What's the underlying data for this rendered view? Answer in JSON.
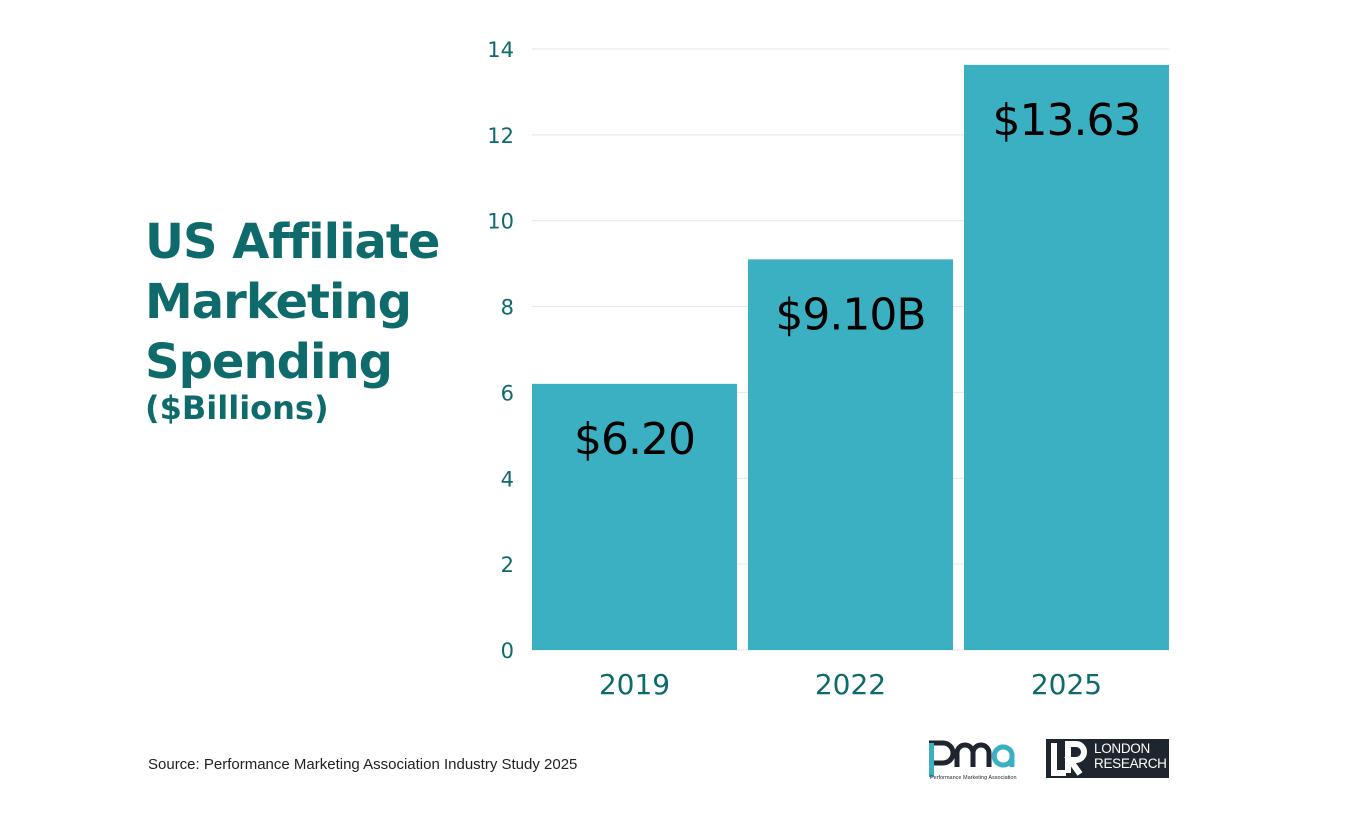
{
  "title": {
    "lines": [
      "US Affiliate",
      "Marketing",
      "Spending"
    ],
    "subtitle": "($Billions)"
  },
  "colors": {
    "title": "#0e6a6b",
    "bar": "#3cb0c3",
    "axis_text": "#0e6a6b",
    "gridline": "#dde9ea",
    "label": "#000000",
    "logo_dark": "#1f252e"
  },
  "chart_data": {
    "type": "bar",
    "categories": [
      "2019",
      "2022",
      "2025"
    ],
    "values": [
      6.2,
      9.1,
      13.63
    ],
    "data_labels": [
      "$6.20",
      "$9.10B",
      "$13.63"
    ],
    "title": "US Affiliate Marketing Spending",
    "subtitle": "($Billions)",
    "xlabel": "",
    "ylabel": "",
    "ylim": [
      0,
      14
    ],
    "yticks": [
      0,
      2,
      4,
      6,
      8,
      10,
      12,
      14
    ],
    "grid": true,
    "legend": "none"
  },
  "footer": {
    "source": "Source: Performance Marketing Association Industry Study 2025",
    "logo_pma_text": "pma",
    "logo_pma_tagline": "Performance Marketing Association",
    "logo_lr_mark": "LR",
    "logo_lr_line1": "LONDON",
    "logo_lr_line2": "RESEARCH"
  }
}
